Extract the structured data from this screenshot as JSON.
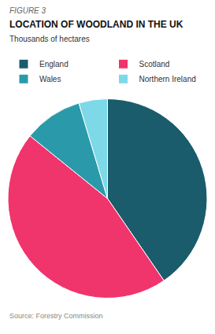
{
  "chart_data": {
    "type": "pie",
    "title": "LOCATION OF WOODLAND IN THE UK",
    "subtitle": "Thousands of hectares",
    "annotations": [
      "FIGURE 3",
      "Source: Forestry Commission"
    ],
    "categories": [
      "England",
      "Scotland",
      "Wales",
      "Northern Ireland"
    ],
    "values": [
      1296,
      1456,
      306,
      149
    ],
    "colors": [
      "#1a5c6b",
      "#f0346c",
      "#2a9aaa",
      "#7dd8e8"
    ],
    "legend": "top",
    "data_labels": false
  }
}
